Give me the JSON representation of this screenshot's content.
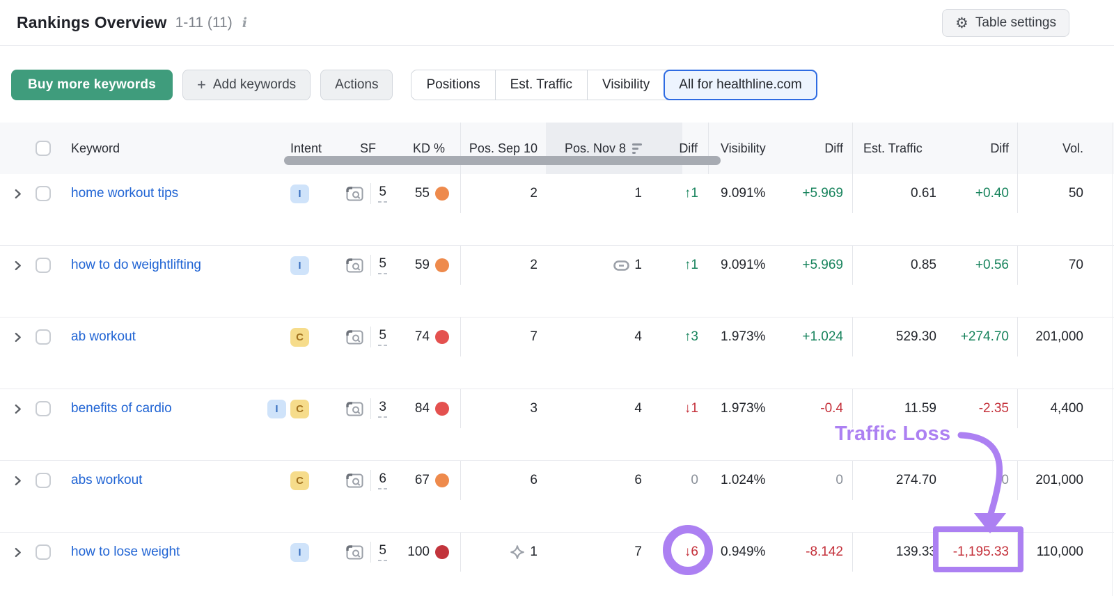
{
  "header": {
    "title": "Rankings Overview",
    "range": "1-11 (11)",
    "table_settings": "Table settings"
  },
  "toolbar": {
    "buy_more": "Buy more keywords",
    "add_keywords": "Add keywords",
    "actions": "Actions",
    "views": [
      {
        "label": "Positions",
        "selected": false
      },
      {
        "label": "Est. Traffic",
        "selected": false
      },
      {
        "label": "Visibility",
        "selected": false
      },
      {
        "label": "All for healthline.com",
        "selected": true
      }
    ]
  },
  "table": {
    "columns": {
      "keyword": "Keyword",
      "intent": "Intent",
      "sf": "SF",
      "kd": "KD %",
      "pos_sep": "Pos. Sep 10",
      "pos_nov": "Pos. Nov 8",
      "diff_pos": "Diff",
      "visibility": "Visibility",
      "diff_vis": "Diff",
      "est_traffic": "Est. Traffic",
      "diff_traffic": "Diff",
      "volume": "Vol."
    },
    "rows": [
      {
        "keyword": "home workout tips",
        "intents": [
          "I"
        ],
        "sf": "5",
        "kd": "55",
        "kd_color": "#ee8a4c",
        "pos_sep": {
          "text": "2",
          "icon": null
        },
        "pos_nov": {
          "text": "1",
          "icon": null
        },
        "pos_diff": {
          "text": "↑1",
          "color": "green"
        },
        "visibility": "9.091%",
        "vis_diff": {
          "text": "+5.969",
          "color": "green"
        },
        "est_traffic": "0.61",
        "traffic_diff": {
          "text": "+0.40",
          "color": "green"
        },
        "volume": "50"
      },
      {
        "keyword": "how to do weightlifting",
        "intents": [
          "I"
        ],
        "sf": "5",
        "kd": "59",
        "kd_color": "#ee8a4c",
        "pos_sep": {
          "text": "2",
          "icon": null
        },
        "pos_nov": {
          "text": "1",
          "icon": "link"
        },
        "pos_diff": {
          "text": "↑1",
          "color": "green"
        },
        "visibility": "9.091%",
        "vis_diff": {
          "text": "+5.969",
          "color": "green"
        },
        "est_traffic": "0.85",
        "traffic_diff": {
          "text": "+0.56",
          "color": "green"
        },
        "volume": "70"
      },
      {
        "keyword": "ab workout",
        "intents": [
          "C"
        ],
        "sf": "5",
        "kd": "74",
        "kd_color": "#e4514f",
        "pos_sep": {
          "text": "7",
          "icon": null
        },
        "pos_nov": {
          "text": "4",
          "icon": null
        },
        "pos_diff": {
          "text": "↑3",
          "color": "green"
        },
        "visibility": "1.973%",
        "vis_diff": {
          "text": "+1.024",
          "color": "green"
        },
        "est_traffic": "529.30",
        "traffic_diff": {
          "text": "+274.70",
          "color": "green"
        },
        "volume": "201,000"
      },
      {
        "keyword": "benefits of cardio",
        "intents": [
          "I",
          "C"
        ],
        "sf": "3",
        "kd": "84",
        "kd_color": "#e4514f",
        "pos_sep": {
          "text": "3",
          "icon": null
        },
        "pos_nov": {
          "text": "4",
          "icon": null
        },
        "pos_diff": {
          "text": "↓1",
          "color": "red"
        },
        "visibility": "1.973%",
        "vis_diff": {
          "text": "-0.4",
          "color": "red"
        },
        "est_traffic": "11.59",
        "traffic_diff": {
          "text": "-2.35",
          "color": "red"
        },
        "volume": "4,400"
      },
      {
        "keyword": "abs workout",
        "intents": [
          "C"
        ],
        "sf": "6",
        "kd": "67",
        "kd_color": "#ee8a4c",
        "pos_sep": {
          "text": "6",
          "icon": null
        },
        "pos_nov": {
          "text": "6",
          "icon": null
        },
        "pos_diff": {
          "text": "0",
          "color": "gray"
        },
        "visibility": "1.024%",
        "vis_diff": {
          "text": "0",
          "color": "gray"
        },
        "est_traffic": "274.70",
        "traffic_diff": {
          "text": "0",
          "color": "gray"
        },
        "volume": "201,000"
      },
      {
        "keyword": "how to lose weight",
        "intents": [
          "I"
        ],
        "sf": "5",
        "kd": "100",
        "kd_color": "#c2343c",
        "pos_sep": {
          "text": "1",
          "icon": "featured-snippet"
        },
        "pos_nov": {
          "text": "7",
          "icon": null
        },
        "pos_diff": {
          "text": "↓6",
          "color": "red",
          "circled": true
        },
        "visibility": "0.949%",
        "vis_diff": {
          "text": "-8.142",
          "color": "red"
        },
        "est_traffic": "139.33",
        "traffic_diff": {
          "text": "-1,195.33",
          "color": "red",
          "boxed": true
        },
        "volume": "110,000"
      }
    ]
  },
  "annotation": {
    "label": "Traffic Loss",
    "color": "#ac80f2"
  },
  "colors": {
    "accent_green_button": "#3f9c7c",
    "link_blue": "#2064d4",
    "diff_up": "#17835c",
    "diff_down": "#c4303a",
    "diff_zero": "#8a9099",
    "selected_tab_border": "#2e6be2"
  }
}
